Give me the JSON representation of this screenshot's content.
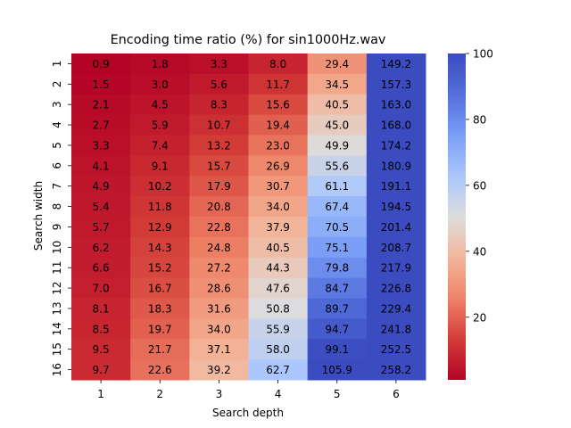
{
  "chart_data": {
    "type": "heatmap",
    "title": "Encoding time ratio (%) for sin1000Hz.wav",
    "xlabel": "Search depth",
    "ylabel": "Search width",
    "x_categories": [
      "1",
      "2",
      "3",
      "4",
      "5",
      "6"
    ],
    "y_categories": [
      "1",
      "2",
      "3",
      "4",
      "5",
      "6",
      "7",
      "8",
      "9",
      "10",
      "11",
      "12",
      "13",
      "14",
      "15",
      "16"
    ],
    "values": [
      [
        0.9,
        1.8,
        3.3,
        8.0,
        29.4,
        149.2
      ],
      [
        1.5,
        3.0,
        5.6,
        11.7,
        34.5,
        157.3
      ],
      [
        2.1,
        4.5,
        8.3,
        15.6,
        40.5,
        163.0
      ],
      [
        2.7,
        5.9,
        10.7,
        19.4,
        45.0,
        168.0
      ],
      [
        3.3,
        7.4,
        13.2,
        23.0,
        49.9,
        174.2
      ],
      [
        4.1,
        9.1,
        15.7,
        26.9,
        55.6,
        180.9
      ],
      [
        4.9,
        10.2,
        17.9,
        30.7,
        61.1,
        191.1
      ],
      [
        5.4,
        11.8,
        20.8,
        34.0,
        67.4,
        194.5
      ],
      [
        5.7,
        12.9,
        22.8,
        37.9,
        70.5,
        201.4
      ],
      [
        6.2,
        14.3,
        24.8,
        40.5,
        75.1,
        208.7
      ],
      [
        6.6,
        15.2,
        27.2,
        44.3,
        79.8,
        217.9
      ],
      [
        7.0,
        16.7,
        28.6,
        47.6,
        84.7,
        226.8
      ],
      [
        8.1,
        18.3,
        31.6,
        50.8,
        89.7,
        229.4
      ],
      [
        8.5,
        19.7,
        34.0,
        55.9,
        94.7,
        241.8
      ],
      [
        9.5,
        21.7,
        37.1,
        58.0,
        99.1,
        252.5
      ],
      [
        9.7,
        22.6,
        39.2,
        62.7,
        105.9,
        258.2
      ]
    ],
    "colormap": "coolwarm_r",
    "vmin": 1,
    "vmax": 100,
    "colorbar_ticks": [
      "20",
      "40",
      "60",
      "80",
      "100"
    ],
    "colors": {
      "low": "#b40426",
      "mid": "#dddcdc",
      "high": "#3b4cc0"
    }
  }
}
